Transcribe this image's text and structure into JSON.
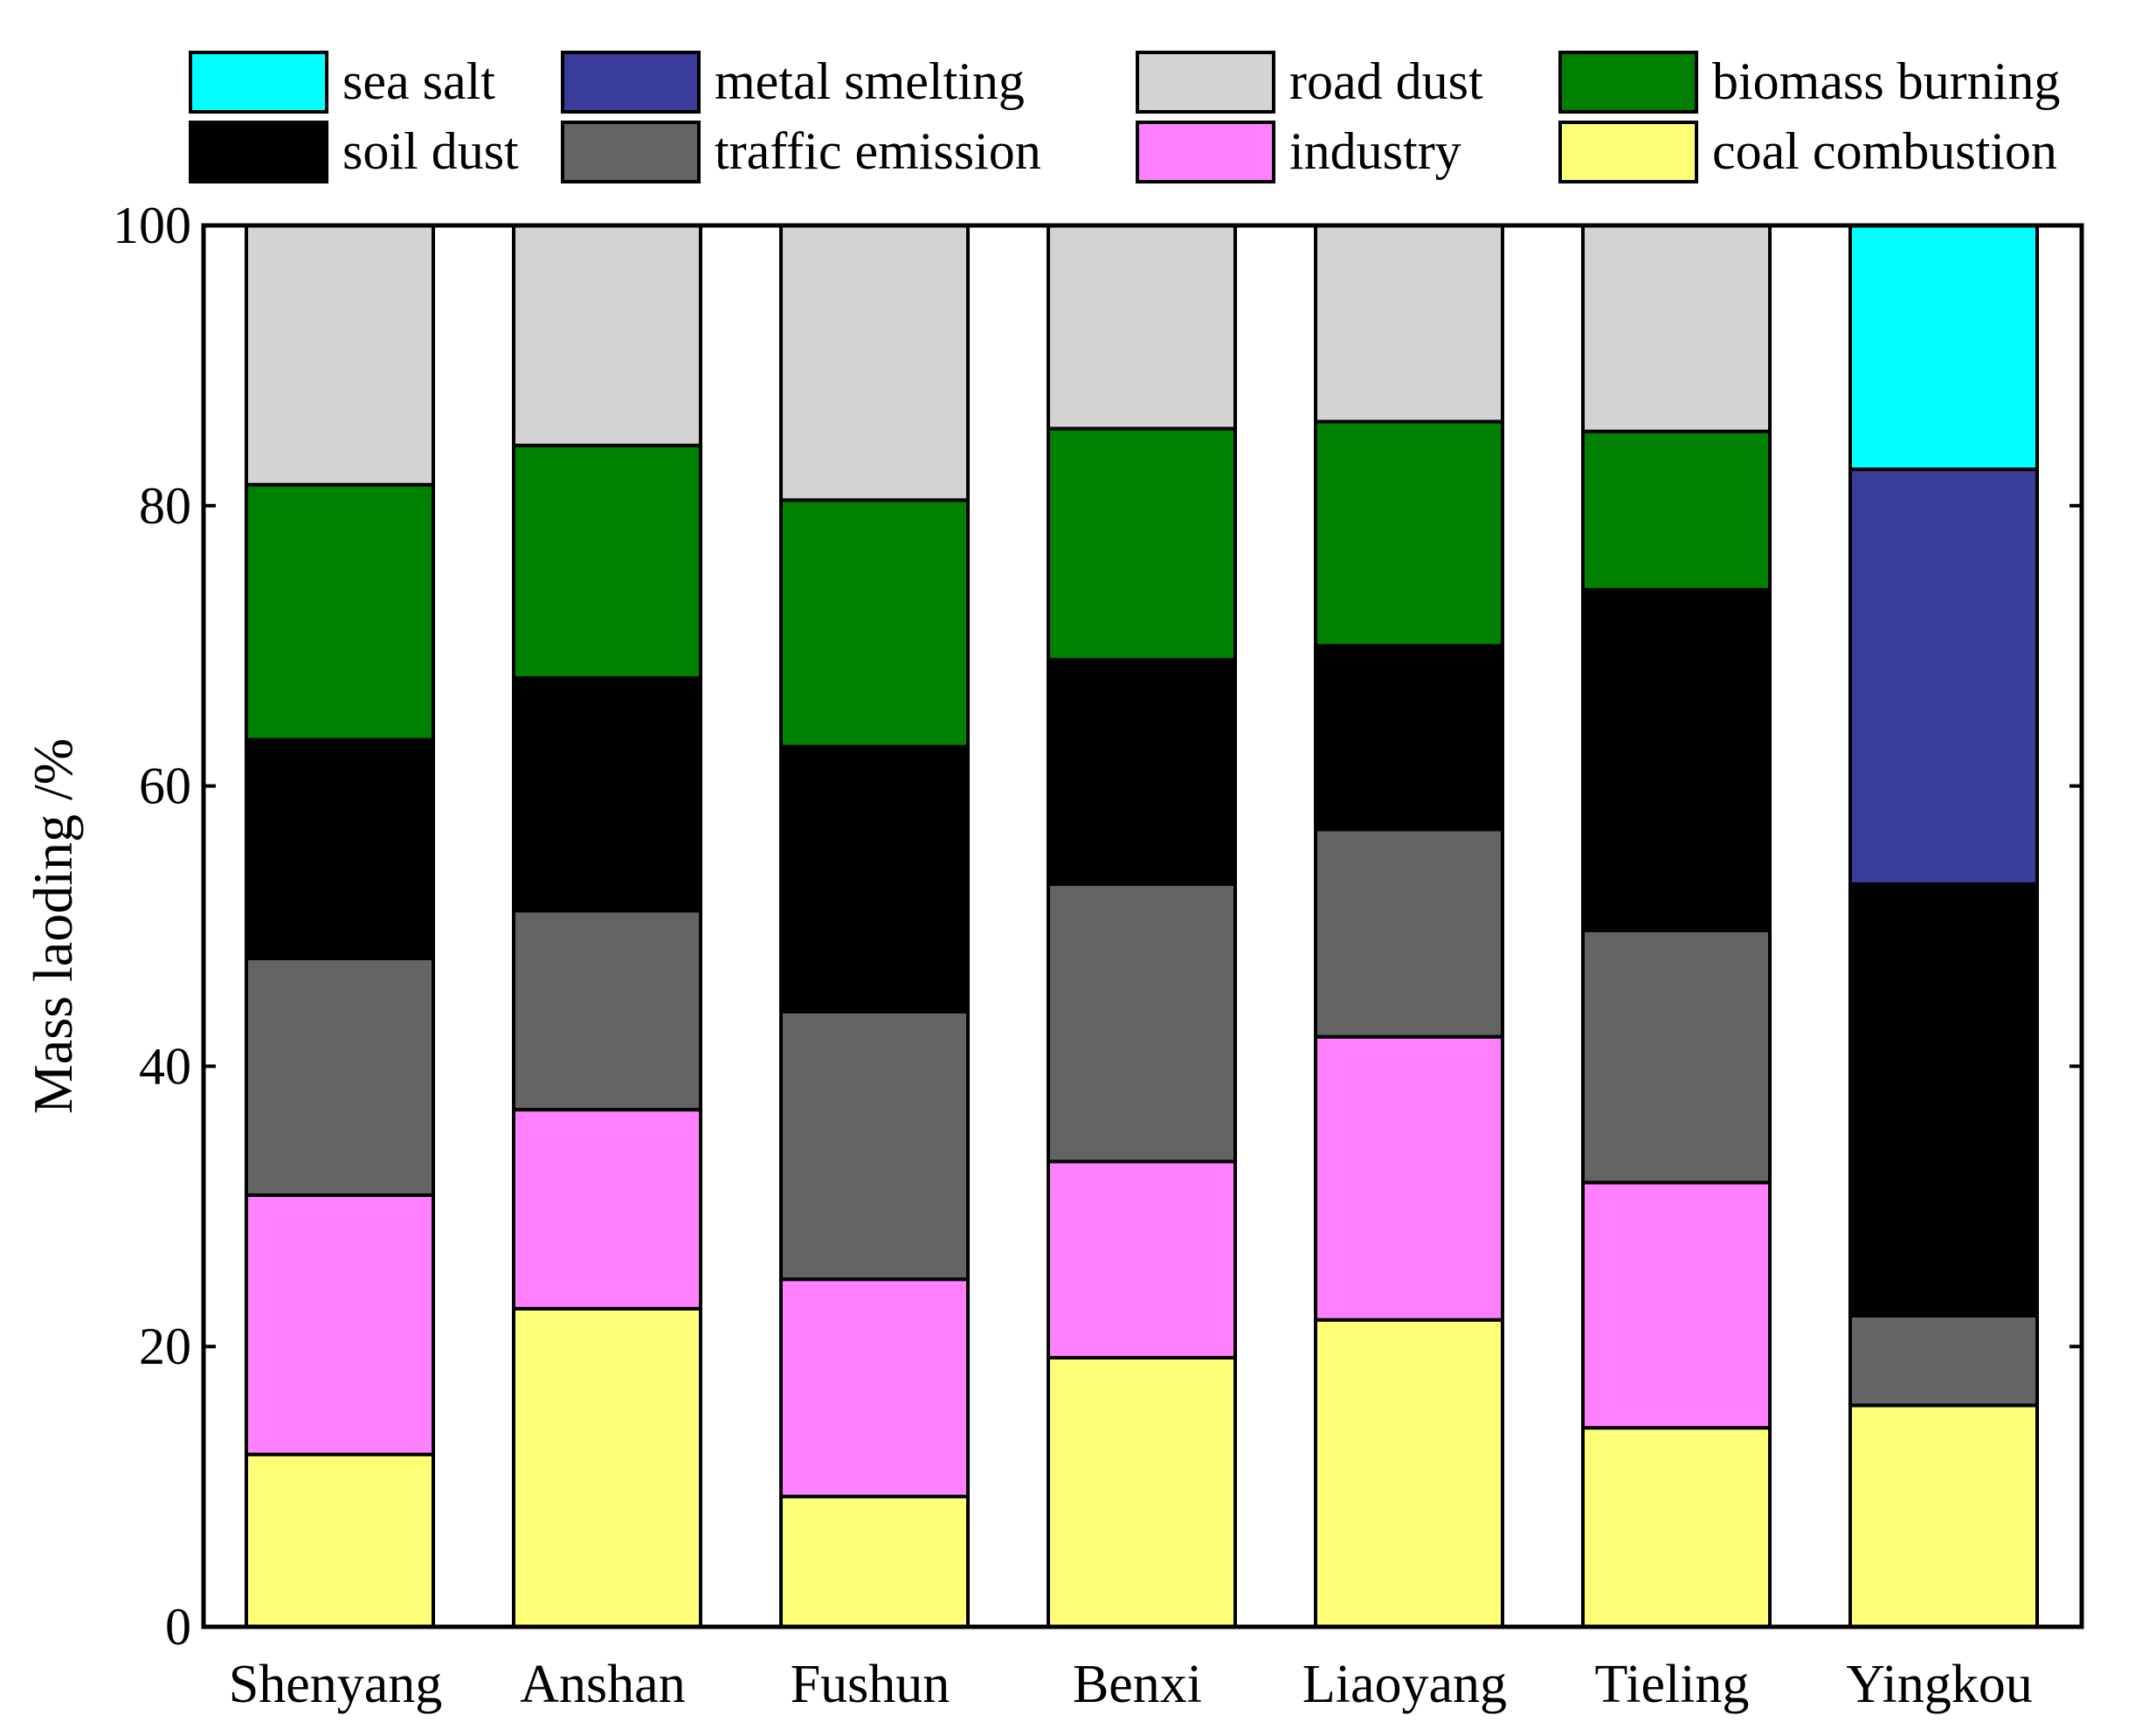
{
  "chart_data": {
    "type": "bar",
    "stacked": true,
    "title": "",
    "xlabel": "",
    "ylabel": "Mass laoding /%",
    "ylim": [
      0,
      100
    ],
    "yticks": [
      0,
      20,
      40,
      60,
      80,
      100
    ],
    "legend_position": "top",
    "categories": [
      "Shenyang",
      "Anshan",
      "Fushun",
      "Benxi",
      "Liaoyang",
      "Tieling",
      "Yingkou"
    ],
    "series": [
      {
        "name": "coal combustion",
        "color": "#FFFF77",
        "values": [
          12.3,
          22.7,
          9.3,
          19.2,
          21.9,
          14.2,
          15.8
        ]
      },
      {
        "name": "industry",
        "color": "#FF80FF",
        "values": [
          18.5,
          14.2,
          15.5,
          14.0,
          20.2,
          17.5,
          0
        ]
      },
      {
        "name": "traffic emission",
        "color": "#646464",
        "values": [
          16.9,
          14.2,
          19.1,
          19.8,
          14.8,
          18.0,
          6.4
        ]
      },
      {
        "name": "soil dust",
        "color": "#000000",
        "values": [
          15.6,
          16.6,
          18.9,
          16.0,
          13.1,
          24.3,
          30.8
        ]
      },
      {
        "name": "biomass burning",
        "color": "#008000",
        "values": [
          18.2,
          16.6,
          17.6,
          16.5,
          16.0,
          11.3,
          0
        ]
      },
      {
        "name": "metal smelting",
        "color": "#3A3C9A",
        "values": [
          0,
          0,
          0,
          0,
          0,
          0,
          29.6
        ]
      },
      {
        "name": "road dust",
        "color": "#D3D3D3",
        "values": [
          18.5,
          15.7,
          19.6,
          14.5,
          14.0,
          14.7,
          0
        ]
      },
      {
        "name": "sea salt",
        "color": "#00FFFF",
        "values": [
          0,
          0,
          0,
          0,
          0,
          0,
          17.4
        ]
      }
    ],
    "legend": [
      {
        "name": "sea salt",
        "color": "#00FFFF"
      },
      {
        "name": "metal smelting",
        "color": "#3A3C9A"
      },
      {
        "name": "road dust",
        "color": "#D3D3D3"
      },
      {
        "name": "biomass burning",
        "color": "#008000"
      },
      {
        "name": "soil dust",
        "color": "#000000"
      },
      {
        "name": "traffic emission",
        "color": "#646464"
      },
      {
        "name": "industry",
        "color": "#FF80FF"
      },
      {
        "name": "coal combustion",
        "color": "#FFFF77"
      }
    ]
  }
}
